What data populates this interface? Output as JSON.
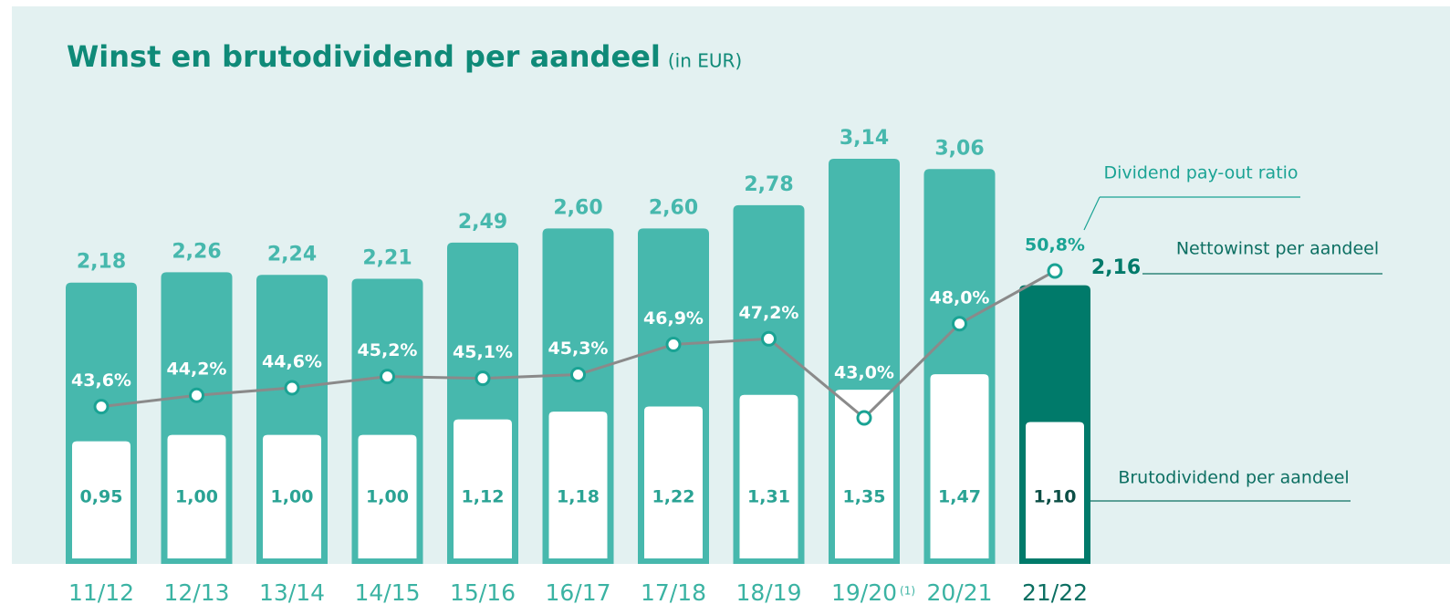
{
  "chart_data": {
    "type": "bar_line",
    "title": "Winst en brutodividend per aandeel",
    "subtitle": "(in EUR)",
    "categories": [
      "11/12",
      "12/13",
      "13/14",
      "14/15",
      "15/16",
      "16/17",
      "17/18",
      "18/19",
      "19/20",
      "20/21",
      "21/22"
    ],
    "category_notes": [
      null,
      null,
      null,
      null,
      null,
      null,
      null,
      null,
      "(1)",
      null,
      null
    ],
    "highlight": "21/22",
    "highlight_color": "#007a6a",
    "series": [
      {
        "name": "Nettowinst per aandeel",
        "color": "#47b8ad",
        "values": [
          2.18,
          2.26,
          2.24,
          2.21,
          2.49,
          2.6,
          2.6,
          2.78,
          3.14,
          3.06,
          2.16
        ],
        "value_labels": [
          "2,18",
          "2,26",
          "2,24",
          "2,21",
          "2,49",
          "2,60",
          "2,60",
          "2,78",
          "3,14",
          "3,06",
          "2,16"
        ]
      },
      {
        "name": "Brutodividend per aandeel",
        "color": "#ffffff",
        "values": [
          0.95,
          1.0,
          1.0,
          1.0,
          1.12,
          1.18,
          1.22,
          1.31,
          1.35,
          1.47,
          1.1
        ],
        "value_labels": [
          "0,95",
          "1,00",
          "1,00",
          "1,00",
          "1,12",
          "1,18",
          "1,22",
          "1,31",
          "1,35",
          "1,47",
          "1,10"
        ]
      },
      {
        "name": "Dividend pay-out ratio",
        "color": "#8a8a8a",
        "axis": "y2",
        "values": [
          43.6,
          44.2,
          44.6,
          45.2,
          45.1,
          45.3,
          46.9,
          47.2,
          43.0,
          48.0,
          50.8
        ],
        "value_labels": [
          "43,6%",
          "44,2%",
          "44,6%",
          "45,2%",
          "45,1%",
          "45,3%",
          "46,9%",
          "47,2%",
          "43,0%",
          "48,0%",
          "50,8%"
        ]
      }
    ]
  }
}
